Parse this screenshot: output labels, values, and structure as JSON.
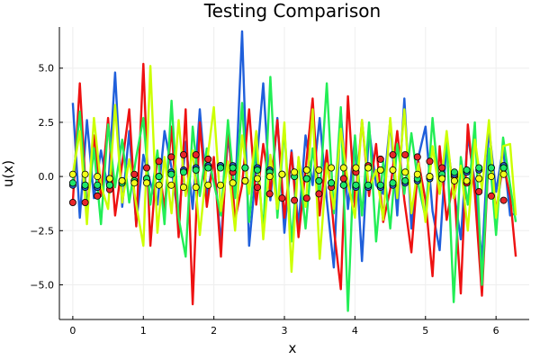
{
  "chart_data": {
    "type": "line",
    "title": "Testing Comparison",
    "xlabel": "x",
    "ylabel": "u(x)",
    "xlim": [
      -0.19,
      6.47
    ],
    "ylim": [
      -6.6,
      6.9
    ],
    "x_ticks": [
      0,
      1,
      2,
      3,
      4,
      5,
      6
    ],
    "x_tick_labels": [
      "0",
      "1",
      "2",
      "3",
      "4",
      "5",
      "6"
    ],
    "y_ticks": [
      -5.0,
      -2.5,
      0.0,
      2.5,
      5.0
    ],
    "y_tick_labels": [
      "−5.0",
      "−2.5",
      "0.0",
      "2.5",
      "5.0"
    ],
    "grid": true,
    "legend": "none",
    "x": [
      0.0,
      0.1,
      0.2,
      0.3,
      0.4,
      0.5,
      0.6,
      0.7,
      0.8,
      0.9,
      1.0,
      1.1,
      1.2,
      1.3,
      1.4,
      1.5,
      1.6,
      1.7,
      1.8,
      1.9,
      2.0,
      2.1,
      2.2,
      2.3,
      2.4,
      2.5,
      2.6,
      2.7,
      2.8,
      2.9,
      3.0,
      3.1,
      3.2,
      3.3,
      3.4,
      3.5,
      3.6,
      3.7,
      3.8,
      3.9,
      4.0,
      4.1,
      4.2,
      4.3,
      4.4,
      4.5,
      4.6,
      4.7,
      4.8,
      4.9,
      5.0,
      5.1,
      5.2,
      5.3,
      5.4,
      5.5,
      5.6,
      5.7,
      5.8,
      5.9,
      6.0,
      6.1,
      6.2,
      6.28
    ],
    "series": [
      {
        "color": "#1f5fdb",
        "values": [
          3.4,
          -1.9,
          2.6,
          -1.0,
          1.2,
          -0.6,
          4.8,
          -1.4,
          2.1,
          -2.2,
          1.0,
          -0.3,
          -1.3,
          2.1,
          0.4,
          -2.0,
          1.6,
          -1.5,
          3.1,
          -0.9,
          0.8,
          -3.1,
          1.9,
          -0.9,
          6.7,
          -3.2,
          0.4,
          4.3,
          -1.1,
          2.7,
          -2.6,
          1.2,
          -2.3,
          1.9,
          -0.4,
          2.7,
          -1.1,
          -4.2,
          3.0,
          -1.5,
          1.8,
          -3.9,
          2.2,
          -0.4,
          -0.8,
          2.6,
          -1.8,
          3.6,
          -2.4,
          0.9,
          2.3,
          -1.6,
          -3.4,
          1.7,
          -0.6,
          -2.9,
          1.9,
          -0.3,
          -3.9,
          2.2,
          -0.7,
          1.3,
          -1.8,
          -1.7
        ]
      },
      {
        "color": "#ee1111",
        "values": [
          -1.2,
          4.3,
          -1.6,
          1.9,
          -0.9,
          2.7,
          -1.8,
          0.6,
          3.1,
          -2.3,
          5.2,
          -3.2,
          1.1,
          -1.5,
          2.3,
          -2.8,
          3.1,
          -5.9,
          2.5,
          -1.4,
          0.9,
          -3.7,
          2.4,
          -2.0,
          -0.4,
          3.1,
          -1.3,
          1.5,
          -0.7,
          2.6,
          -1.9,
          1.1,
          -2.8,
          0.3,
          3.6,
          -1.8,
          1.2,
          -2.4,
          -5.2,
          3.7,
          -1.4,
          2.6,
          -0.9,
          1.5,
          -2.1,
          -0.6,
          2.1,
          -1.1,
          -3.5,
          0.7,
          -1.1,
          -4.6,
          1.4,
          -2.0,
          -0.1,
          -5.4,
          2.4,
          -0.8,
          -5.5,
          1.2,
          -1.6,
          0.6,
          -0.9,
          -3.7
        ]
      },
      {
        "color": "#22ee55",
        "values": [
          -0.4,
          3.0,
          -1.6,
          1.3,
          -2.2,
          2.4,
          -0.5,
          1.7,
          -1.2,
          0.9,
          2.7,
          -1.3,
          1.2,
          -2.2,
          3.5,
          -1.9,
          -3.7,
          2.3,
          -0.9,
          1.3,
          -0.3,
          -1.8,
          2.6,
          -1.0,
          3.4,
          -2.1,
          1.5,
          -2.6,
          4.6,
          -1.9,
          2.2,
          -3.0,
          0.8,
          -2.4,
          1.3,
          -0.9,
          4.3,
          -1.7,
          3.2,
          -6.2,
          1.9,
          -1.8,
          2.5,
          -3.0,
          0.7,
          -2.4,
          1.5,
          -0.8,
          2.0,
          -0.4,
          -1.9,
          2.7,
          -0.8,
          1.8,
          -5.8,
          0.9,
          -1.3,
          2.5,
          -5.0,
          1.3,
          -2.7,
          1.8,
          -0.4,
          -2.1
        ]
      },
      {
        "color": "#ccff00",
        "values": [
          0.1,
          2.1,
          -2.2,
          2.7,
          -0.4,
          -1.5,
          3.3,
          -1.2,
          0.8,
          -1.3,
          -3.2,
          5.1,
          -2.6,
          0.9,
          -1.7,
          2.6,
          -0.9,
          1.2,
          -2.7,
          0.6,
          3.2,
          -1.6,
          0.7,
          -2.5,
          1.9,
          -0.8,
          2.1,
          -2.9,
          1.0,
          -1.5,
          2.5,
          -4.4,
          0.9,
          -1.4,
          3.1,
          -3.8,
          0.6,
          -1.5,
          2.2,
          -0.3,
          -1.9,
          2.6,
          -0.6,
          0.3,
          -2.0,
          2.7,
          -1.0,
          3.1,
          -1.7,
          0.6,
          -2.1,
          1.4,
          -0.8,
          2.1,
          -1.0,
          0.5,
          -2.5,
          1.7,
          -0.6,
          2.6,
          -1.9,
          1.4,
          1.5,
          -1.8
        ]
      }
    ],
    "point_series": [
      {
        "color": "#e8262a",
        "values": [
          -1.2,
          -1.2,
          -0.9,
          -0.6,
          -0.2,
          0.1,
          0.4,
          0.7,
          0.9,
          1.0,
          1.0,
          0.8,
          0.5,
          0.2,
          -0.2,
          -0.5,
          -0.8,
          -1.0,
          -1.1,
          -1.0,
          -0.8,
          -0.5,
          -0.1,
          0.2,
          0.5,
          0.8,
          1.0,
          1.0,
          0.9,
          0.7,
          0.4,
          0.0,
          -0.3,
          -0.7,
          -0.9,
          -1.1
        ]
      },
      {
        "color": "#2a62cc",
        "values": [
          -0.4,
          -0.5,
          -0.5,
          -0.4,
          -0.3,
          -0.2,
          -0.1,
          0.0,
          0.2,
          0.3,
          0.4,
          0.5,
          0.5,
          0.5,
          0.4,
          0.4,
          0.3,
          0.1,
          0.0,
          -0.1,
          -0.2,
          -0.3,
          -0.4,
          -0.5,
          -0.5,
          -0.5,
          -0.4,
          -0.3,
          -0.2,
          -0.1,
          0.0,
          0.1,
          0.2,
          0.3,
          0.4,
          0.5
        ]
      },
      {
        "color": "#1ee86a",
        "values": [
          -0.3,
          -0.4,
          -0.4,
          -0.4,
          -0.3,
          -0.2,
          -0.1,
          0.0,
          0.1,
          0.2,
          0.3,
          0.4,
          0.4,
          0.4,
          0.4,
          0.3,
          0.2,
          0.1,
          0.0,
          -0.1,
          -0.2,
          -0.3,
          -0.4,
          -0.4,
          -0.4,
          -0.4,
          -0.3,
          -0.2,
          -0.1,
          0.0,
          0.1,
          0.2,
          0.3,
          0.4,
          0.4,
          0.4
        ]
      },
      {
        "color": "#f2ff1a",
        "values": [
          0.1,
          0.1,
          0.0,
          -0.1,
          -0.2,
          -0.3,
          -0.3,
          -0.4,
          -0.4,
          -0.5,
          -0.5,
          -0.4,
          -0.4,
          -0.3,
          -0.2,
          -0.1,
          0.0,
          0.1,
          0.2,
          0.3,
          0.3,
          0.4,
          0.4,
          0.4,
          0.4,
          0.3,
          0.3,
          0.2,
          0.1,
          0.0,
          -0.1,
          -0.2,
          -0.2,
          -0.1,
          0.0,
          0.1
        ]
      }
    ],
    "point_x_step": 0.1745
  },
  "colors": {
    "grid": "#eeeeee",
    "axis": "#000000",
    "marker_outline": "#000000"
  }
}
